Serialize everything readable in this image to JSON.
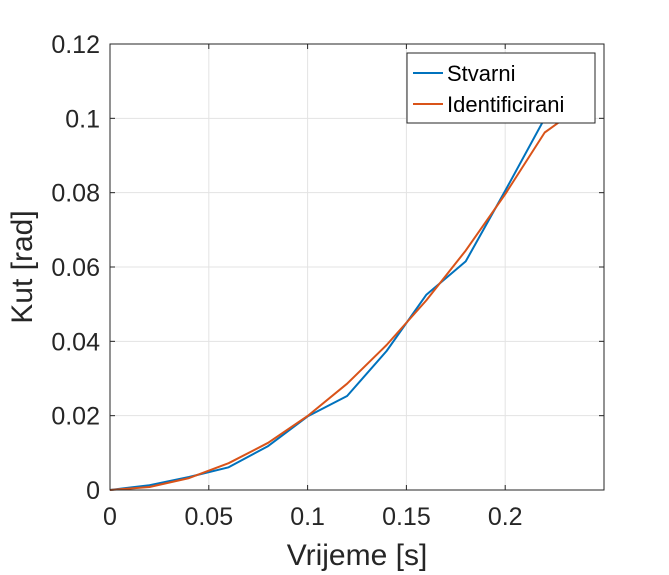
{
  "chart_data": {
    "type": "line",
    "title": "",
    "xlabel": "Vrijeme [s]",
    "ylabel": "Kut [rad]",
    "xlim": [
      0,
      0.25
    ],
    "ylim": [
      0,
      0.12
    ],
    "x_ticks": [
      0,
      0.05,
      0.1,
      0.15,
      0.2
    ],
    "x_tick_labels": [
      "0",
      "0.05",
      "0.1",
      "0.15",
      "0.2"
    ],
    "y_ticks": [
      0,
      0.02,
      0.04,
      0.06,
      0.08,
      0.1,
      0.12
    ],
    "y_tick_labels": [
      "0",
      "0.02",
      "0.04",
      "0.06",
      "0.08",
      "0.1",
      "0.12"
    ],
    "grid": true,
    "legend_position": "top-right",
    "series": [
      {
        "name": "Stvarni",
        "color": "#0072BD",
        "x": [
          0,
          0.02,
          0.04,
          0.06,
          0.08,
          0.1,
          0.12,
          0.14,
          0.16,
          0.18,
          0.2,
          0.22,
          0.225
        ],
        "y": [
          0,
          0.0013,
          0.0035,
          0.0061,
          0.0118,
          0.0198,
          0.0253,
          0.0374,
          0.0525,
          0.0615,
          0.0805,
          0.1,
          0.1
        ]
      },
      {
        "name": "Identificirani",
        "color": "#D95319",
        "x": [
          0,
          0.02,
          0.04,
          0.06,
          0.08,
          0.1,
          0.12,
          0.14,
          0.16,
          0.18,
          0.2,
          0.22,
          0.23
        ],
        "y": [
          0,
          0.0008,
          0.0032,
          0.0072,
          0.0127,
          0.0199,
          0.0286,
          0.039,
          0.051,
          0.0644,
          0.0796,
          0.0962,
          0.1
        ]
      }
    ]
  }
}
